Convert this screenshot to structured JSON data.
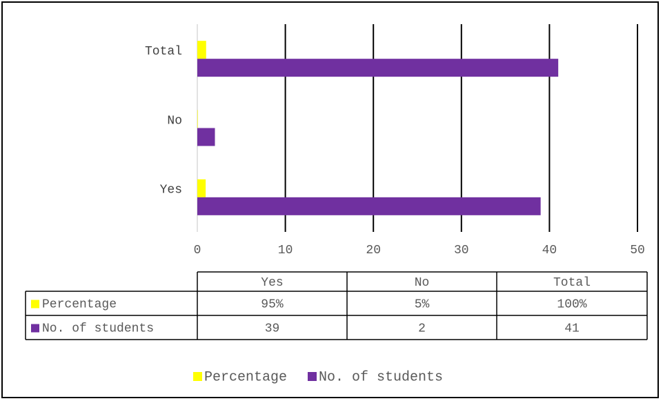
{
  "chart_data": {
    "type": "bar",
    "orientation": "horizontal",
    "categories": [
      "Yes",
      "No",
      "Total"
    ],
    "series": [
      {
        "name": "Percentage",
        "values": [
          0.95,
          0.05,
          1.0
        ],
        "labels": [
          "95%",
          "5%",
          "100%"
        ],
        "color": "#ffff00"
      },
      {
        "name": "No. of students",
        "values": [
          39,
          2,
          41
        ],
        "labels": [
          "39",
          "2",
          "41"
        ],
        "color": "#7030a0"
      }
    ],
    "xlim": [
      0,
      50
    ],
    "xticks": [
      "0",
      "10",
      "20",
      "30",
      "40",
      "50"
    ],
    "grid": true,
    "legend": "bottom",
    "data_table": true
  }
}
